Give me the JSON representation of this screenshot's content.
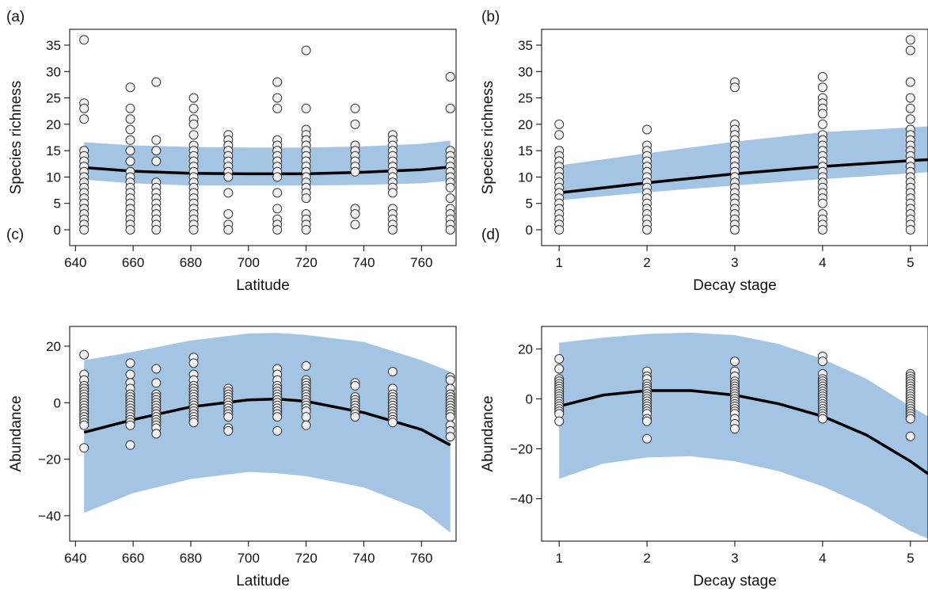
{
  "colors": {
    "ci_band": "#a3c4e3",
    "fit_line": "#000000",
    "point_fill": "#f2f2f2",
    "point_stroke": "#333333"
  },
  "chart_data": [
    {
      "id": "a",
      "panel_label": "(a)",
      "type": "scatter",
      "xlabel": "Latitude",
      "ylabel": "Species richness",
      "xlim": [
        638,
        772
      ],
      "ylim": [
        -3,
        38
      ],
      "xticks": [
        640,
        660,
        680,
        700,
        720,
        740,
        760
      ],
      "yticks": [
        0,
        5,
        10,
        15,
        20,
        25,
        30,
        35
      ],
      "fit": {
        "x": [
          643,
          660,
          680,
          700,
          720,
          740,
          760,
          770
        ],
        "y": [
          11.8,
          11.1,
          10.7,
          10.6,
          10.6,
          10.9,
          11.4,
          11.9
        ]
      },
      "band": {
        "x": [
          643,
          660,
          680,
          700,
          720,
          740,
          760,
          770
        ],
        "lower": [
          9.5,
          8.8,
          8.4,
          8.4,
          8.4,
          8.5,
          8.8,
          9.3
        ],
        "upper": [
          16.6,
          16.0,
          15.7,
          15.6,
          15.6,
          15.8,
          16.3,
          16.9
        ]
      },
      "points": [
        {
          "x": 643,
          "ys": [
            36,
            24,
            23,
            21,
            15,
            14,
            13,
            12,
            11,
            10,
            9,
            8,
            7,
            6,
            5,
            4,
            3,
            2,
            1,
            0
          ]
        },
        {
          "x": 659,
          "ys": [
            27,
            23,
            21,
            19,
            17,
            15,
            13,
            11,
            10,
            9,
            8,
            7,
            6,
            5,
            4,
            3,
            2,
            1,
            0
          ]
        },
        {
          "x": 668,
          "ys": [
            28,
            17,
            15,
            13,
            9,
            8,
            7,
            6,
            5,
            4,
            3,
            2,
            1,
            0
          ]
        },
        {
          "x": 681,
          "ys": [
            25,
            23,
            21,
            20,
            18,
            16,
            15,
            14,
            13,
            12,
            11,
            10,
            9,
            8,
            7,
            6,
            5,
            4,
            3,
            2,
            1,
            0
          ]
        },
        {
          "x": 693,
          "ys": [
            18,
            17,
            16,
            15,
            14,
            13,
            12,
            11,
            10,
            7,
            3,
            1,
            0
          ]
        },
        {
          "x": 710,
          "ys": [
            28,
            25,
            23,
            17,
            16,
            15,
            14,
            13,
            12,
            11,
            10,
            7,
            4,
            2,
            1,
            0
          ]
        },
        {
          "x": 720,
          "ys": [
            34,
            23,
            19,
            18,
            17,
            16,
            15,
            14,
            13,
            12,
            11,
            10,
            9,
            8,
            7,
            6,
            3,
            2,
            1,
            0
          ]
        },
        {
          "x": 737,
          "ys": [
            23,
            20,
            16,
            15,
            14,
            13,
            12,
            11,
            4,
            3,
            1
          ]
        },
        {
          "x": 750,
          "ys": [
            18,
            17,
            16,
            15,
            14,
            13,
            12,
            11,
            10,
            9,
            8,
            7,
            4,
            3,
            2,
            1,
            0
          ]
        },
        {
          "x": 770,
          "ys": [
            29,
            23,
            15,
            14,
            13,
            12,
            11,
            10,
            9,
            8,
            6,
            4,
            3,
            2,
            1,
            0
          ]
        }
      ]
    },
    {
      "id": "b",
      "panel_label": "(b)",
      "type": "scatter",
      "xlabel": "Decay stage",
      "ylabel": "Species richness",
      "xlim": [
        0.8,
        5.2
      ],
      "ylim": [
        -3,
        38
      ],
      "xticks": [
        1,
        2,
        3,
        4,
        5
      ],
      "yticks": [
        0,
        5,
        10,
        15,
        20,
        25,
        30,
        35
      ],
      "fit": {
        "x": [
          1,
          2,
          3,
          4,
          5,
          5.2
        ],
        "y": [
          7.0,
          8.9,
          10.6,
          12.0,
          13.1,
          13.3
        ]
      },
      "band": {
        "x": [
          1,
          2,
          3,
          4,
          5,
          5.2
        ],
        "lower": [
          5.6,
          7.1,
          8.4,
          9.6,
          10.7,
          10.9
        ],
        "upper": [
          12.2,
          14.5,
          16.7,
          18.5,
          19.4,
          19.6
        ]
      },
      "points": [
        {
          "x": 1,
          "ys": [
            20,
            18,
            15,
            14,
            13,
            12,
            11,
            10,
            9,
            8,
            7,
            6,
            5,
            4,
            3,
            2,
            1,
            0
          ]
        },
        {
          "x": 2,
          "ys": [
            19,
            16,
            15,
            14,
            13,
            12,
            11,
            10,
            9,
            8,
            7,
            6,
            5,
            4,
            3,
            2,
            1,
            0
          ]
        },
        {
          "x": 3,
          "ys": [
            28,
            27,
            20,
            19,
            18,
            17,
            16,
            15,
            14,
            13,
            12,
            11,
            10,
            9,
            8,
            7,
            6,
            5,
            4,
            3,
            2,
            1,
            0
          ]
        },
        {
          "x": 4,
          "ys": [
            29,
            27,
            25,
            24,
            23,
            22,
            20,
            18,
            17,
            16,
            15,
            14,
            13,
            12,
            11,
            10,
            9,
            8,
            7,
            6,
            5,
            3,
            2,
            1,
            0
          ]
        },
        {
          "x": 5,
          "ys": [
            36,
            34,
            28,
            25,
            23,
            21,
            19,
            18,
            17,
            16,
            15,
            14,
            13,
            12,
            11,
            10,
            9,
            8,
            7,
            6,
            5,
            4,
            3,
            2,
            1,
            0
          ]
        }
      ]
    },
    {
      "id": "c",
      "panel_label": "(c)",
      "type": "scatter",
      "xlabel": "Latitude",
      "ylabel": "Abundance",
      "xlim": [
        638,
        772
      ],
      "ylim": [
        -49,
        27
      ],
      "xticks": [
        640,
        660,
        680,
        700,
        720,
        740,
        760
      ],
      "yticks": [
        -40,
        -20,
        0,
        20
      ],
      "fit": {
        "x": [
          643,
          660,
          680,
          700,
          710,
          720,
          740,
          760,
          770
        ],
        "y": [
          -10.5,
          -6.0,
          -1.5,
          1.0,
          1.3,
          0.5,
          -3.5,
          -9.5,
          -15.0
        ]
      },
      "band": {
        "x": [
          643,
          660,
          680,
          700,
          710,
          720,
          740,
          760,
          770
        ],
        "lower": [
          -39,
          -32,
          -27,
          -24.5,
          -25,
          -26,
          -30,
          -38,
          -46
        ],
        "upper": [
          15,
          18,
          22,
          24.5,
          24.7,
          24,
          21.5,
          15,
          11
        ]
      },
      "points": [
        {
          "x": 643,
          "ys": [
            17,
            10,
            8,
            6,
            5,
            4,
            3,
            2,
            1,
            0,
            -1,
            -2,
            -3,
            -4,
            -5,
            -6,
            -7,
            -8,
            -16
          ]
        },
        {
          "x": 659,
          "ys": [
            14,
            10,
            7,
            5,
            3,
            2,
            1,
            0,
            -1,
            -2,
            -3,
            -4,
            -5,
            -6,
            -7,
            -8,
            -15
          ]
        },
        {
          "x": 668,
          "ys": [
            12,
            7,
            3,
            2,
            1,
            0,
            -1,
            -2,
            -3,
            -4,
            -5,
            -6,
            -7,
            -8,
            -9,
            -11
          ]
        },
        {
          "x": 681,
          "ys": [
            16,
            14,
            10,
            8,
            6,
            5,
            4,
            3,
            2,
            1,
            0,
            -1,
            -2,
            -3,
            -4,
            -5,
            -6,
            -7
          ]
        },
        {
          "x": 693,
          "ys": [
            5,
            4,
            3,
            2,
            1,
            0,
            -1,
            -2,
            -3,
            -4,
            -5,
            -9,
            -10
          ]
        },
        {
          "x": 710,
          "ys": [
            12,
            10,
            8,
            6,
            5,
            4,
            3,
            2,
            1,
            0,
            -1,
            -2,
            -3,
            -4,
            -5,
            -10
          ]
        },
        {
          "x": 720,
          "ys": [
            13,
            8,
            7,
            6,
            5,
            4,
            3,
            2,
            1,
            0,
            -1,
            -2,
            -3,
            -5,
            -8
          ]
        },
        {
          "x": 737,
          "ys": [
            7,
            6,
            2,
            1,
            0,
            -1,
            -2,
            -3,
            -4,
            -5
          ]
        },
        {
          "x": 750,
          "ys": [
            11,
            5,
            3,
            2,
            1,
            0,
            -1,
            -2,
            -3,
            -4,
            -5,
            -6,
            -7
          ]
        },
        {
          "x": 770,
          "ys": [
            9,
            8,
            5,
            3,
            2,
            1,
            0,
            -1,
            -2,
            -3,
            -4,
            -5,
            -8,
            -10,
            -12
          ]
        }
      ]
    },
    {
      "id": "d",
      "panel_label": "(d)",
      "type": "scatter",
      "xlabel": "Decay stage",
      "ylabel": "Abundance",
      "xlim": [
        0.8,
        5.2
      ],
      "ylim": [
        -57,
        29
      ],
      "xticks": [
        1,
        2,
        3,
        4,
        5
      ],
      "yticks": [
        -40,
        -20,
        0,
        20
      ],
      "fit": {
        "x": [
          1,
          1.5,
          2,
          2.5,
          3,
          3.5,
          4,
          4.5,
          5,
          5.2
        ],
        "y": [
          -3.0,
          1.5,
          3.3,
          3.3,
          1.5,
          -2.0,
          -7.0,
          -14.5,
          -25.0,
          -30.0
        ]
      },
      "band": {
        "x": [
          1,
          1.5,
          2,
          2.5,
          3,
          3.5,
          4,
          4.5,
          5,
          5.2
        ],
        "lower": [
          -32,
          -26,
          -23.5,
          -23,
          -25,
          -29,
          -35,
          -43,
          -53,
          -56
        ],
        "upper": [
          22.5,
          24.5,
          26,
          26.5,
          25.5,
          22,
          16,
          8,
          -3,
          -7
        ]
      },
      "points": [
        {
          "x": 1,
          "ys": [
            16,
            12,
            8,
            7,
            6,
            5,
            4,
            3,
            2,
            1,
            0,
            -1,
            -2,
            -3,
            -4,
            -5,
            -6,
            -9
          ]
        },
        {
          "x": 2,
          "ys": [
            11,
            9,
            8,
            6,
            5,
            4,
            3,
            2,
            1,
            0,
            -1,
            -2,
            -3,
            -4,
            -5,
            -6,
            -8,
            -9,
            -16
          ]
        },
        {
          "x": 3,
          "ys": [
            15,
            11,
            9,
            7,
            6,
            5,
            4,
            3,
            2,
            1,
            0,
            -1,
            -2,
            -3,
            -4,
            -5,
            -6,
            -8,
            -10,
            -12
          ]
        },
        {
          "x": 4,
          "ys": [
            17,
            15,
            10,
            8,
            7,
            6,
            5,
            4,
            3,
            2,
            1,
            0,
            -1,
            -2,
            -3,
            -4,
            -5,
            -6,
            -7,
            -8
          ]
        },
        {
          "x": 5,
          "ys": [
            10,
            9,
            8,
            7,
            6,
            5,
            4,
            3,
            2,
            1,
            0,
            -1,
            -2,
            -3,
            -4,
            -5,
            -6,
            -7,
            -8,
            -15
          ]
        }
      ]
    }
  ]
}
